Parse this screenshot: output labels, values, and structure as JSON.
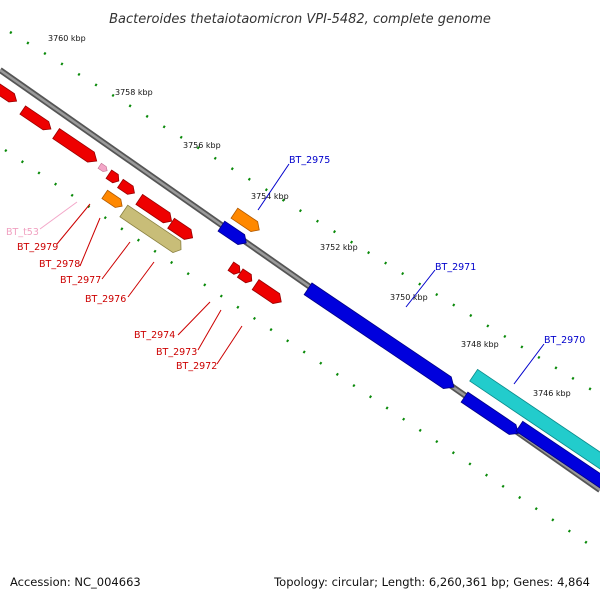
{
  "title": "Bacteroides thetaiotaomicron VPI-5482, complete genome",
  "footer": {
    "accession": "Accession: NC_004663",
    "summary": "Topology: circular; Length: 6,260,361 bp; Genes: 4,864"
  },
  "ruler_labels": [
    "3760 kbp",
    "3758 kbp",
    "3756 kbp",
    "3754 kbp",
    "3752 kbp",
    "3750 kbp",
    "3748 kbp",
    "3746 kbp"
  ],
  "gene_labels": [
    {
      "text": "BT_2975",
      "color": "#0000cc"
    },
    {
      "text": "BT_2971",
      "color": "#0000cc"
    },
    {
      "text": "BT_2970",
      "color": "#0000cc"
    },
    {
      "text": "BT_t53",
      "color": "#f0a0c0"
    },
    {
      "text": "BT_2979",
      "color": "#cc0000"
    },
    {
      "text": "BT_2978",
      "color": "#cc0000"
    },
    {
      "text": "BT_2977",
      "color": "#cc0000"
    },
    {
      "text": "BT_2976",
      "color": "#cc0000"
    },
    {
      "text": "BT_2974",
      "color": "#cc0000"
    },
    {
      "text": "BT_2973",
      "color": "#cc0000"
    },
    {
      "text": "BT_2972",
      "color": "#cc0000"
    }
  ],
  "colors": {
    "backbone": "#777777",
    "ruler": "#0a8a0a",
    "cds_red": "#ee0000",
    "cds_blue": "#0000dd",
    "cds_cyan": "#22cccc",
    "cds_orange": "#ff8800",
    "cds_olive": "#c8bd78",
    "trna_pink": "#f3a6c8"
  }
}
